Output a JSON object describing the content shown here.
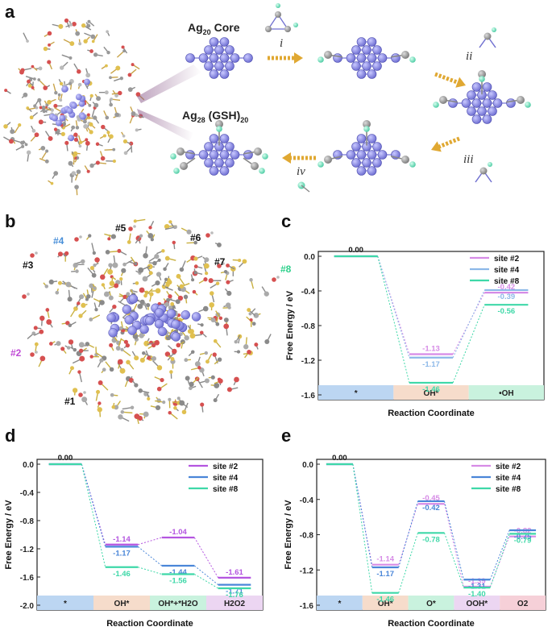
{
  "panel_a": {
    "letter": "a",
    "core_label": "Ag",
    "core_sub": "20",
    "core_tail": " Core",
    "cluster_label": "Ag",
    "cluster_sub1": "28",
    "cluster_mid": " (GSH)",
    "cluster_sub2": "20",
    "steps": [
      "i",
      "ii",
      "iii",
      "iv"
    ]
  },
  "panel_b": {
    "letter": "b",
    "sites": [
      {
        "text": "#1",
        "color": "#111111"
      },
      {
        "text": "#2",
        "color": "#c04bd6"
      },
      {
        "text": "#3",
        "color": "#111111"
      },
      {
        "text": "#4",
        "color": "#4a90d9"
      },
      {
        "text": "#5",
        "color": "#111111"
      },
      {
        "text": "#6",
        "color": "#111111"
      },
      {
        "text": "#7",
        "color": "#111111"
      },
      {
        "text": "#8",
        "color": "#2fd18c"
      }
    ]
  },
  "colors": {
    "site2": "#c864e6",
    "site4": "#5a9ae0",
    "site8": "#3ed8a8"
  },
  "chart_data": [
    {
      "panel": "c",
      "type": "line",
      "ylabel": "Free Energy / eV",
      "xlabel": "Reaction Coordinate",
      "ylim": [
        -1.6,
        0.0
      ],
      "yticks": [
        "0.0",
        "-0.4",
        "-0.8",
        "-1.2",
        "-1.6"
      ],
      "categories": [
        "*",
        "OH*",
        "•OH"
      ],
      "band_colors": [
        "#bcd6f2",
        "#f6dccb",
        "#c9f2de"
      ],
      "legend": "top-right",
      "series": [
        {
          "name": "site #2",
          "color": "#d68be6",
          "values": [
            0.0,
            -1.13,
            -0.42
          ],
          "labels": [
            "0.00",
            "-1.13",
            "-0.42"
          ]
        },
        {
          "name": "site #4",
          "color": "#8cb8e8",
          "values": [
            0.0,
            -1.17,
            -0.39
          ],
          "labels": [
            "",
            "-1.17",
            "-0.39"
          ]
        },
        {
          "name": "site #8",
          "color": "#3ed8a8",
          "values": [
            0.0,
            -1.46,
            -0.56
          ],
          "labels": [
            "",
            "-1.46",
            "-0.56"
          ]
        }
      ]
    },
    {
      "panel": "d",
      "type": "line",
      "ylabel": "Free Energy / eV",
      "xlabel": "Reaction Coordinate",
      "ylim": [
        -2.0,
        0.0
      ],
      "yticks": [
        "0.0",
        "-0.4",
        "-0.8",
        "-1.2",
        "-1.6",
        "-2.0"
      ],
      "categories": [
        "*",
        "OH*",
        "OH*+*H2O",
        "H2O2"
      ],
      "band_colors": [
        "#bcd6f2",
        "#f6dccb",
        "#c9f2de",
        "#ecd6f2"
      ],
      "legend": "top-right",
      "series": [
        {
          "name": "site #2",
          "color": "#b455e0",
          "values": [
            0.0,
            -1.14,
            -1.04,
            -1.61
          ],
          "labels": [
            "0.00",
            "-1.14",
            "-1.04",
            "-1.61"
          ]
        },
        {
          "name": "site #4",
          "color": "#4a86d8",
          "values": [
            0.0,
            -1.17,
            -1.44,
            -1.71
          ],
          "labels": [
            "",
            "-1.17",
            "-1.44",
            "-1.71"
          ]
        },
        {
          "name": "site #8",
          "color": "#3ed8a8",
          "values": [
            0.0,
            -1.46,
            -1.56,
            -1.76
          ],
          "labels": [
            "",
            "-1.46",
            "-1.56",
            "-1.76"
          ]
        }
      ]
    },
    {
      "panel": "e",
      "type": "line",
      "ylabel": "Free Energy / eV",
      "xlabel": "Reaction Coordinate",
      "ylim": [
        -1.6,
        0.0
      ],
      "yticks": [
        "0.0",
        "-0.4",
        "-0.8",
        "-1.2",
        "-1.6"
      ],
      "categories": [
        "*",
        "OH*",
        "O*",
        "OOH*",
        "O2"
      ],
      "band_colors": [
        "#bcd6f2",
        "#f6dccb",
        "#c9f2de",
        "#ecd6f2",
        "#f6d0d8"
      ],
      "legend": "top-right",
      "series": [
        {
          "name": "site #2",
          "color": "#d68be6",
          "values": [
            0.0,
            -1.14,
            -0.45,
            -1.39,
            -0.82
          ],
          "labels": [
            "0.00",
            "-1.14",
            "-0.45",
            "-1.39",
            "-0.82"
          ]
        },
        {
          "name": "site #4",
          "color": "#4a86d8",
          "values": [
            0.0,
            -1.17,
            -0.42,
            -1.31,
            -0.75
          ],
          "labels": [
            "",
            "-1.17",
            "-0.42",
            "-1.31",
            "-0.75"
          ]
        },
        {
          "name": "site #8",
          "color": "#3ed8a8",
          "values": [
            0.0,
            -1.46,
            -0.78,
            -1.4,
            -0.79
          ],
          "labels": [
            "",
            "-1.46",
            "-0.78",
            "-1.40",
            "-0.79"
          ]
        }
      ]
    }
  ]
}
